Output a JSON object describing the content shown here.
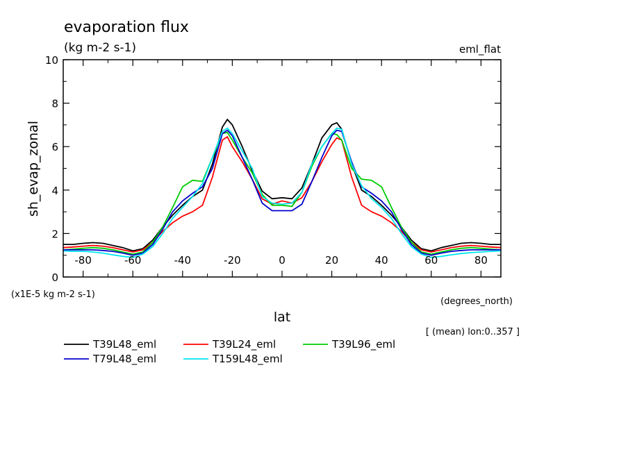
{
  "chart_data": {
    "type": "line",
    "title": "evaporation flux",
    "subtitle": "(kg m-2 s-1)",
    "experiment_label": "eml_flat",
    "ylabel": "sh_evap_zonal",
    "y_scale_note": "(x1E-5 kg m-2 s-1)",
    "xlabel": "lat",
    "x_units": "(degrees_north)",
    "mean_note": "[ (mean) lon:0..357 ]",
    "xlim": [
      -88,
      88
    ],
    "ylim": [
      0,
      10
    ],
    "x_ticks": [
      -80,
      -60,
      -40,
      -20,
      0,
      20,
      40,
      60,
      80
    ],
    "y_ticks": [
      0,
      2,
      4,
      6,
      8,
      10
    ],
    "grid": false,
    "legend_position": "below",
    "x": [
      -88,
      -84,
      -80,
      -76,
      -72,
      -68,
      -64,
      -60,
      -56,
      -52,
      -48,
      -44,
      -40,
      -36,
      -32,
      -28,
      -24,
      -22,
      -20,
      -16,
      -12,
      -8,
      -4,
      0,
      4,
      8,
      12,
      16,
      20,
      22,
      24,
      28,
      32,
      36,
      40,
      44,
      48,
      52,
      56,
      60,
      64,
      68,
      72,
      76,
      80,
      84,
      88
    ],
    "series": [
      {
        "name": "T39L48_eml",
        "color": "#000000",
        "values": [
          1.5,
          1.5,
          1.55,
          1.58,
          1.55,
          1.45,
          1.35,
          1.2,
          1.3,
          1.7,
          2.3,
          2.85,
          3.3,
          3.7,
          4.0,
          5.2,
          6.9,
          7.25,
          7.0,
          6.0,
          4.9,
          3.95,
          3.6,
          3.65,
          3.6,
          4.1,
          5.2,
          6.4,
          7.0,
          7.1,
          6.8,
          5.2,
          4.0,
          3.7,
          3.3,
          2.85,
          2.3,
          1.7,
          1.3,
          1.2,
          1.35,
          1.45,
          1.55,
          1.58,
          1.55,
          1.5,
          1.5
        ]
      },
      {
        "name": "T39L24_eml",
        "color": "#ff0000",
        "values": [
          1.35,
          1.38,
          1.42,
          1.45,
          1.42,
          1.35,
          1.25,
          1.15,
          1.25,
          1.6,
          2.1,
          2.5,
          2.8,
          3.0,
          3.3,
          4.6,
          6.3,
          6.45,
          6.0,
          5.3,
          4.5,
          3.6,
          3.35,
          3.5,
          3.4,
          3.65,
          4.4,
          5.3,
          6.1,
          6.4,
          6.3,
          4.6,
          3.3,
          3.0,
          2.8,
          2.5,
          2.1,
          1.6,
          1.25,
          1.15,
          1.25,
          1.35,
          1.42,
          1.45,
          1.42,
          1.38,
          1.35
        ]
      },
      {
        "name": "T39L96_eml",
        "color": "#00cc00",
        "values": [
          1.25,
          1.28,
          1.32,
          1.35,
          1.32,
          1.25,
          1.15,
          1.05,
          1.15,
          1.6,
          2.3,
          3.2,
          4.15,
          4.45,
          4.4,
          5.5,
          6.6,
          6.65,
          6.3,
          5.5,
          4.8,
          3.8,
          3.3,
          3.3,
          3.25,
          3.9,
          5.1,
          6.0,
          6.6,
          6.55,
          6.3,
          5.0,
          4.5,
          4.45,
          4.15,
          3.2,
          2.3,
          1.6,
          1.15,
          1.05,
          1.15,
          1.25,
          1.32,
          1.35,
          1.32,
          1.28,
          1.25
        ]
      },
      {
        "name": "T79L48_eml",
        "color": "#0000cc",
        "values": [
          1.25,
          1.25,
          1.25,
          1.25,
          1.22,
          1.18,
          1.1,
          1.0,
          1.1,
          1.5,
          2.2,
          3.0,
          3.5,
          3.85,
          4.15,
          5.0,
          6.6,
          6.75,
          6.5,
          5.5,
          4.5,
          3.4,
          3.05,
          3.05,
          3.05,
          3.35,
          4.4,
          5.5,
          6.5,
          6.75,
          6.7,
          5.3,
          4.15,
          3.85,
          3.5,
          3.0,
          2.2,
          1.5,
          1.1,
          1.0,
          1.1,
          1.18,
          1.22,
          1.25,
          1.25,
          1.25,
          1.25
        ]
      },
      {
        "name": "T159L48_eml",
        "color": "#00e5ee",
        "values": [
          1.2,
          1.18,
          1.18,
          1.15,
          1.1,
          1.02,
          0.95,
          0.9,
          1.05,
          1.4,
          2.0,
          2.7,
          3.2,
          3.7,
          4.3,
          5.5,
          6.7,
          6.85,
          6.6,
          5.8,
          5.0,
          3.7,
          3.4,
          3.35,
          3.4,
          3.9,
          5.2,
          6.0,
          6.6,
          6.85,
          6.8,
          5.2,
          4.2,
          3.6,
          3.2,
          2.7,
          2.0,
          1.4,
          1.05,
          0.9,
          0.95,
          1.02,
          1.08,
          1.12,
          1.15,
          1.18,
          1.2
        ]
      }
    ]
  }
}
